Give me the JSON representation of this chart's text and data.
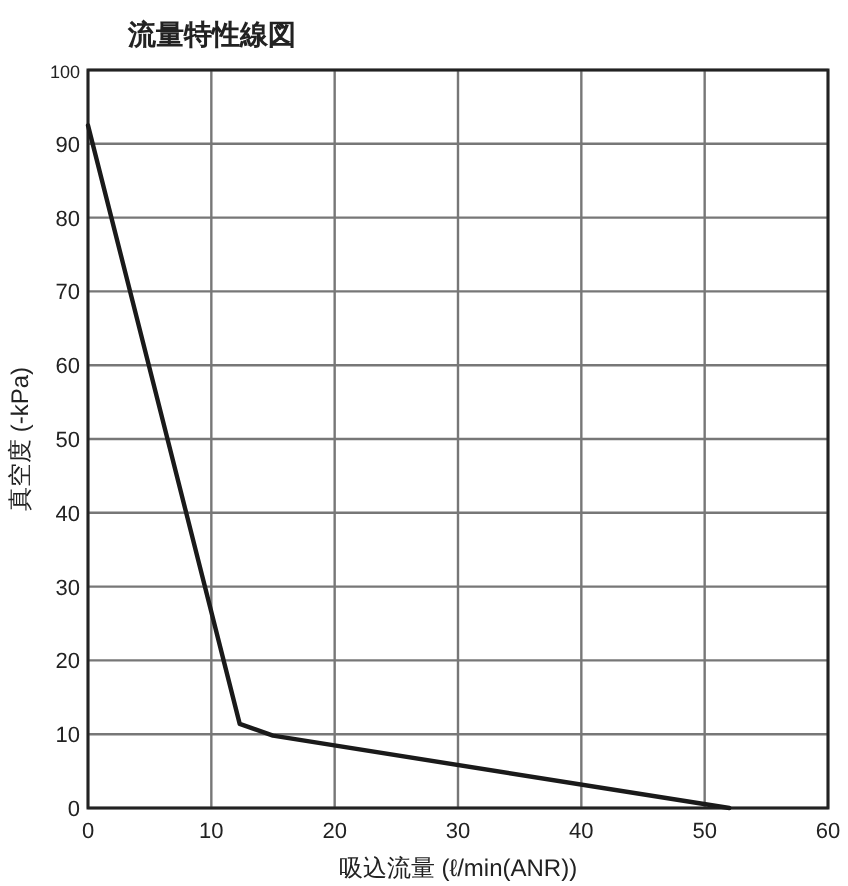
{
  "chart_data": {
    "type": "line",
    "title": "流量特性線図",
    "xlabel": "吸込流量 (ℓ/min(ANR))",
    "ylabel": "真空度 (-kPa)",
    "x": [
      0,
      12.3,
      15,
      52
    ],
    "series": [
      {
        "color": "#1a1a1a",
        "values": [
          92.5,
          11.4,
          9.8,
          0
        ]
      }
    ],
    "xlim": [
      0,
      60
    ],
    "xticks": [
      0,
      10,
      20,
      30,
      40,
      50,
      60
    ],
    "ylim": [
      0,
      100
    ],
    "yticks": [
      0,
      10,
      20,
      30,
      40,
      50,
      60,
      70,
      80,
      90,
      100
    ],
    "grid": true,
    "marker": "none",
    "line_style": "solid"
  }
}
